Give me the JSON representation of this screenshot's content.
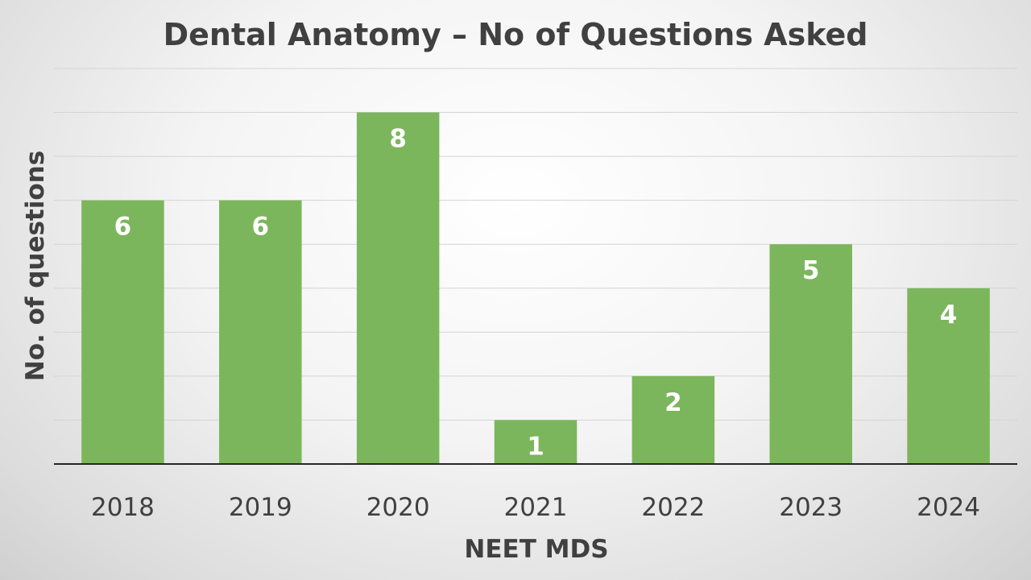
{
  "chart_data": {
    "type": "bar",
    "title": "Dental Anatomy – No of Questions Asked",
    "xlabel": "NEET MDS",
    "ylabel": "No. of questions",
    "categories": [
      "2018",
      "2019",
      "2020",
      "2021",
      "2022",
      "2023",
      "2024"
    ],
    "values": [
      6,
      6,
      8,
      1,
      2,
      5,
      4
    ],
    "data_labels": [
      "6",
      "6",
      "8",
      "1",
      "2",
      "5",
      "4"
    ],
    "ylim": [
      0,
      9
    ],
    "grid": true,
    "legend": "none",
    "bar_color": "#7cb65c"
  }
}
